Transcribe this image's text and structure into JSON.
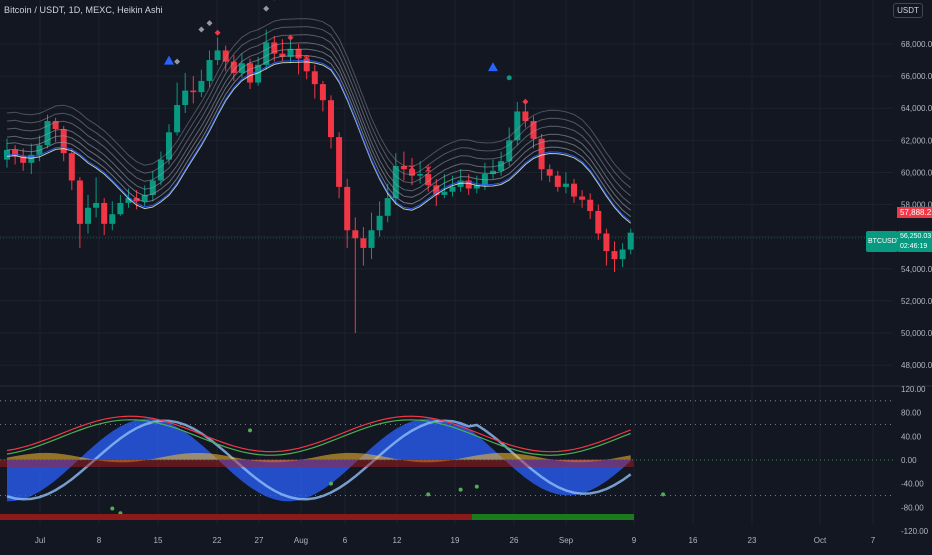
{
  "header": {
    "title": "Bitcoin / USDT, 1D, MEXC, Heikin Ashi",
    "currency": "USDT"
  },
  "price_axis": {
    "labels": [
      "68,000.00",
      "66,000.00",
      "64,000.00",
      "62,000.00",
      "60,000.00",
      "58,000.00",
      "56,000.00",
      "54,000.00",
      "52,000.00",
      "50,000.00",
      "48,000.00"
    ],
    "tag_red": "57,888.21",
    "tag_symbol": "BTCUSDT",
    "tag_green_price": "56,250.03",
    "tag_countdown": "02:46:19"
  },
  "osc_axis": {
    "labels": [
      "120.00",
      "80.00",
      "40.00",
      "0.00",
      "-40.00",
      "-80.00",
      "-120.00"
    ]
  },
  "time_axis": {
    "labels": [
      "Jul",
      "8",
      "15",
      "22",
      "27",
      "Aug",
      "6",
      "12",
      "19",
      "26",
      "Sep",
      "9",
      "16",
      "23",
      "Oct",
      "7"
    ]
  },
  "colors": {
    "background": "#131722",
    "bull": "#089981",
    "bear": "#f23645",
    "grid": "#1e222d"
  }
}
